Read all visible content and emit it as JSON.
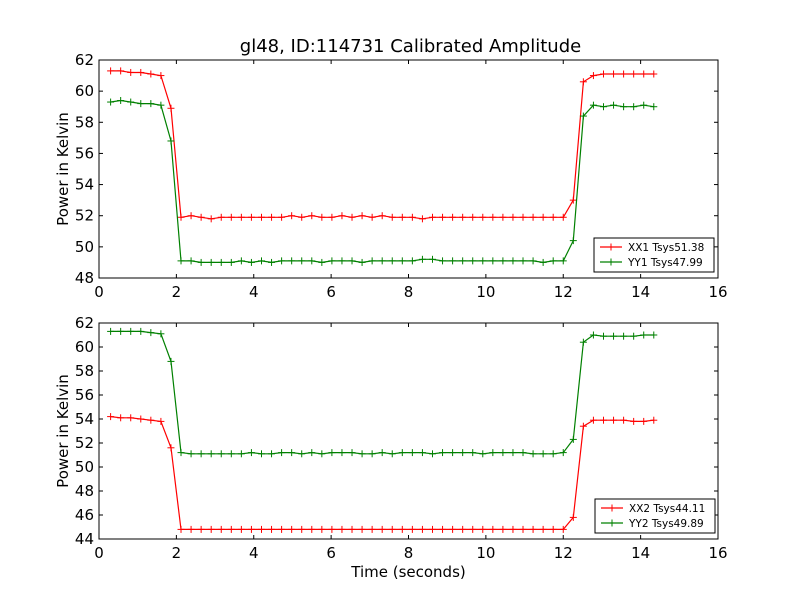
{
  "title": "gl48, ID:114731 Calibrated Amplitude",
  "chart_data": [
    {
      "type": "line",
      "title": "gl48, ID:114731 Calibrated Amplitude",
      "xlabel": "",
      "ylabel": "Power in Kelvin",
      "xlim": [
        0,
        16
      ],
      "ylim": [
        48,
        62
      ],
      "xticks": [
        "0",
        "2",
        "4",
        "6",
        "8",
        "10",
        "12",
        "14",
        "16"
      ],
      "yticks": [
        "48",
        "50",
        "52",
        "54",
        "56",
        "58",
        "60",
        "62"
      ],
      "grid": false,
      "legend_position": "lower-right",
      "x": [
        0.3,
        0.56,
        0.82,
        1.08,
        1.34,
        1.6,
        1.86,
        2.12,
        2.38,
        2.64,
        2.9,
        3.16,
        3.42,
        3.68,
        3.94,
        4.2,
        4.46,
        4.72,
        4.98,
        5.24,
        5.5,
        5.76,
        6.02,
        6.28,
        6.54,
        6.8,
        7.06,
        7.32,
        7.58,
        7.84,
        8.1,
        8.36,
        8.62,
        8.88,
        9.14,
        9.4,
        9.66,
        9.92,
        10.18,
        10.44,
        10.7,
        10.96,
        11.22,
        11.48,
        11.74,
        12.0,
        12.26,
        12.52,
        12.78,
        13.04,
        13.3,
        13.56,
        13.82,
        14.08,
        14.34
      ],
      "series": [
        {
          "name": "XX1 Tsys51.38",
          "color": "#ff0000",
          "values": [
            61.3,
            61.3,
            61.2,
            61.2,
            61.1,
            61.0,
            58.9,
            51.9,
            52.0,
            51.9,
            51.8,
            51.9,
            51.9,
            51.9,
            51.9,
            51.9,
            51.9,
            51.9,
            52.0,
            51.9,
            52.0,
            51.9,
            51.9,
            52.0,
            51.9,
            52.0,
            51.9,
            52.0,
            51.9,
            51.9,
            51.9,
            51.8,
            51.9,
            51.9,
            51.9,
            51.9,
            51.9,
            51.9,
            51.9,
            51.9,
            51.9,
            51.9,
            51.9,
            51.9,
            51.9,
            51.9,
            53.0,
            60.6,
            61.0,
            61.1,
            61.1,
            61.1,
            61.1,
            61.1,
            61.1
          ]
        },
        {
          "name": "YY1 Tsys47.99",
          "color": "#008000",
          "values": [
            59.3,
            59.4,
            59.3,
            59.2,
            59.2,
            59.1,
            56.8,
            49.1,
            49.1,
            49.0,
            49.0,
            49.0,
            49.0,
            49.1,
            49.0,
            49.1,
            49.0,
            49.1,
            49.1,
            49.1,
            49.1,
            49.0,
            49.1,
            49.1,
            49.1,
            49.0,
            49.1,
            49.1,
            49.1,
            49.1,
            49.1,
            49.2,
            49.2,
            49.1,
            49.1,
            49.1,
            49.1,
            49.1,
            49.1,
            49.1,
            49.1,
            49.1,
            49.1,
            49.0,
            49.1,
            49.1,
            50.4,
            58.4,
            59.1,
            59.0,
            59.1,
            59.0,
            59.0,
            59.1,
            59.0
          ]
        }
      ]
    },
    {
      "type": "line",
      "title": "",
      "xlabel": "Time (seconds)",
      "ylabel": "Power in Kelvin",
      "xlim": [
        0,
        16
      ],
      "ylim": [
        44,
        62
      ],
      "xticks": [
        "0",
        "2",
        "4",
        "6",
        "8",
        "10",
        "12",
        "14",
        "16"
      ],
      "yticks": [
        "44",
        "46",
        "48",
        "50",
        "52",
        "54",
        "56",
        "58",
        "60",
        "62"
      ],
      "grid": false,
      "legend_position": "lower-right",
      "x": [
        0.3,
        0.56,
        0.82,
        1.08,
        1.34,
        1.6,
        1.86,
        2.12,
        2.38,
        2.64,
        2.9,
        3.16,
        3.42,
        3.68,
        3.94,
        4.2,
        4.46,
        4.72,
        4.98,
        5.24,
        5.5,
        5.76,
        6.02,
        6.28,
        6.54,
        6.8,
        7.06,
        7.32,
        7.58,
        7.84,
        8.1,
        8.36,
        8.62,
        8.88,
        9.14,
        9.4,
        9.66,
        9.92,
        10.18,
        10.44,
        10.7,
        10.96,
        11.22,
        11.48,
        11.74,
        12.0,
        12.26,
        12.52,
        12.78,
        13.04,
        13.3,
        13.56,
        13.82,
        14.08,
        14.34
      ],
      "series": [
        {
          "name": "XX2 Tsys44.11",
          "color": "#ff0000",
          "values": [
            54.2,
            54.1,
            54.1,
            54.0,
            53.9,
            53.8,
            51.6,
            44.8,
            44.8,
            44.8,
            44.8,
            44.8,
            44.8,
            44.8,
            44.8,
            44.8,
            44.8,
            44.8,
            44.8,
            44.8,
            44.8,
            44.8,
            44.8,
            44.8,
            44.8,
            44.8,
            44.8,
            44.8,
            44.8,
            44.8,
            44.8,
            44.8,
            44.8,
            44.8,
            44.8,
            44.8,
            44.8,
            44.8,
            44.8,
            44.8,
            44.8,
            44.8,
            44.8,
            44.8,
            44.8,
            44.8,
            45.8,
            53.4,
            53.9,
            53.9,
            53.9,
            53.9,
            53.8,
            53.8,
            53.9
          ]
        },
        {
          "name": "YY2 Tsys49.89",
          "color": "#008000",
          "values": [
            61.3,
            61.3,
            61.3,
            61.3,
            61.2,
            61.1,
            58.8,
            51.2,
            51.1,
            51.1,
            51.1,
            51.1,
            51.1,
            51.1,
            51.2,
            51.1,
            51.1,
            51.2,
            51.2,
            51.1,
            51.2,
            51.1,
            51.2,
            51.2,
            51.2,
            51.1,
            51.1,
            51.2,
            51.1,
            51.2,
            51.2,
            51.2,
            51.1,
            51.2,
            51.2,
            51.2,
            51.2,
            51.1,
            51.2,
            51.2,
            51.2,
            51.2,
            51.1,
            51.1,
            51.1,
            51.2,
            52.3,
            60.4,
            61.0,
            60.9,
            60.9,
            60.9,
            60.9,
            61.0,
            61.0
          ]
        }
      ]
    }
  ]
}
